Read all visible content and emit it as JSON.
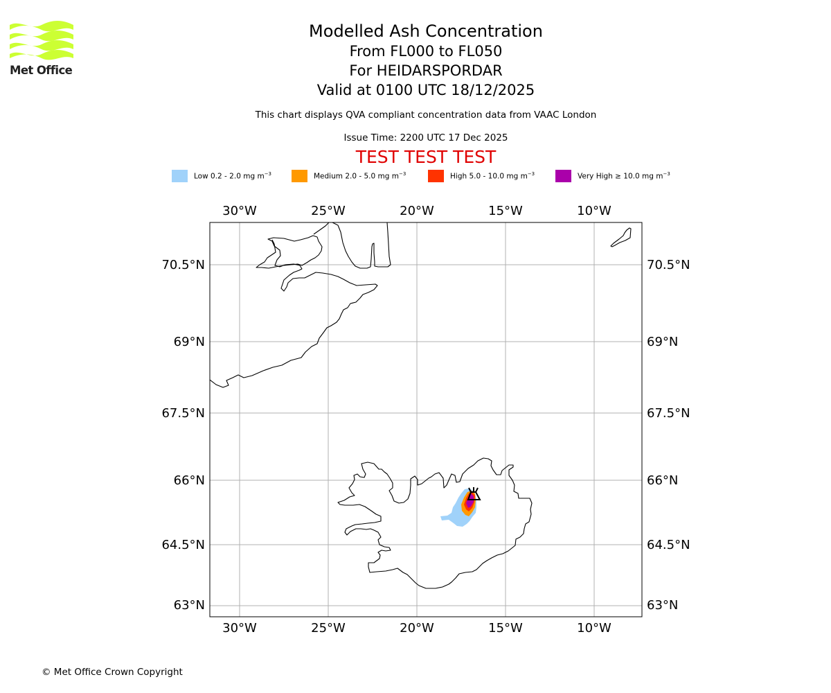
{
  "header": {
    "title": "Modelled Ash Concentration",
    "levels": "From FL000 to FL050",
    "volcano": "For HEIDARSPORDAR",
    "valid": "Valid at 0100 UTC 18/12/2025",
    "description": "This chart displays QVA compliant concentration data from VAAC London",
    "issue_time": "Issue Time: 2200 UTC 17 Dec 2025",
    "test_banner": "TEST TEST TEST"
  },
  "logo": {
    "text": "Met Office",
    "color": "#ccff33"
  },
  "legend": [
    {
      "label": "Low 0.2 - 2.0 mg m",
      "color": "#a0d2fa"
    },
    {
      "label": "Medium 2.0 - 5.0 mg m",
      "color": "#ff9900"
    },
    {
      "label": "High 5.0 - 10.0 mg m",
      "color": "#ff3300"
    },
    {
      "label": "Very High  ≥  10.0 mg m",
      "color": "#aa00aa"
    }
  ],
  "legend_unit_exponent": "−3",
  "map": {
    "lon_ticks": [
      "30°W",
      "25°W",
      "20°W",
      "15°W",
      "10°W"
    ],
    "lat_ticks": [
      "70.5°N",
      "69°N",
      "67.5°N",
      "66°N",
      "64.5°N",
      "63°N"
    ],
    "extent": {
      "lon_min": -31.7,
      "lon_max": -7.4,
      "lat_min": 62.75,
      "lat_max": 71.4
    }
  },
  "footer": {
    "copyright": "© Met Office Crown Copyright"
  }
}
